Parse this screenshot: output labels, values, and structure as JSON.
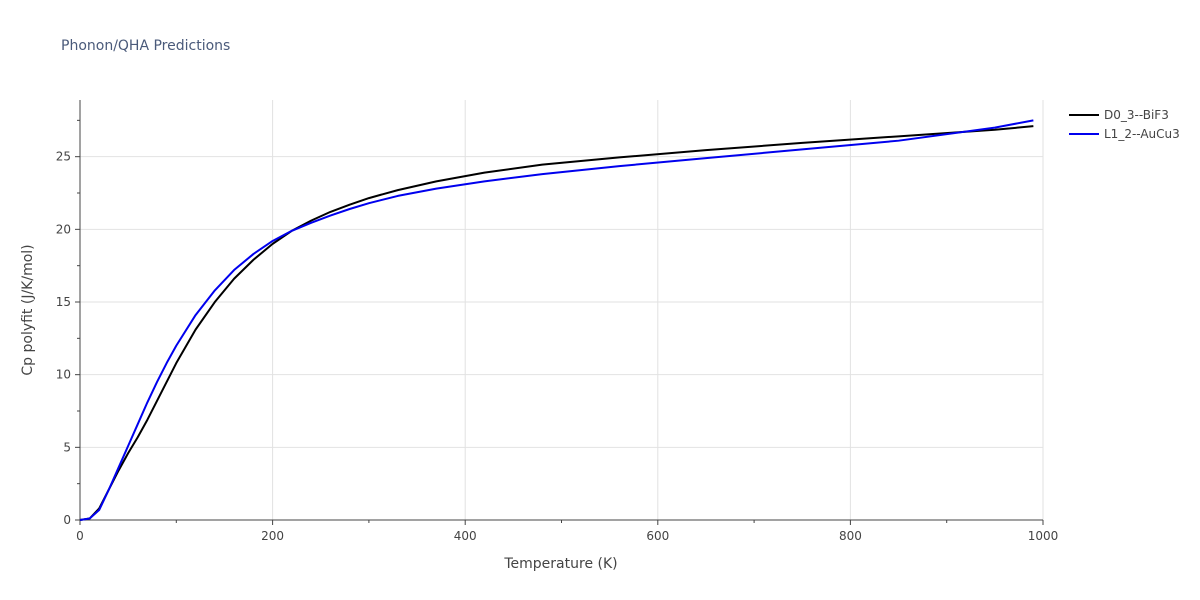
{
  "chart_data": {
    "type": "line",
    "title": "Phonon/QHA Predictions",
    "xlabel": "Temperature (K)",
    "ylabel": "Cp polyfit (J/K/mol)",
    "xlim": [
      0,
      1000
    ],
    "ylim": [
      0,
      28.9
    ],
    "xticks": [
      0,
      200,
      400,
      600,
      800,
      1000
    ],
    "yticks": [
      0,
      5,
      10,
      15,
      20,
      25
    ],
    "grid": true,
    "legend_position": "top-right",
    "series": [
      {
        "name": "D0_3--BiF3",
        "color": "#000000",
        "x": [
          0,
          10,
          20,
          30,
          40,
          50,
          60,
          70,
          80,
          90,
          100,
          120,
          140,
          160,
          180,
          200,
          220,
          240,
          260,
          280,
          300,
          330,
          370,
          420,
          480,
          560,
          650,
          750,
          850,
          950,
          990
        ],
        "y": [
          0,
          0.1,
          0.8,
          2.1,
          3.4,
          4.6,
          5.7,
          6.9,
          8.2,
          9.5,
          10.8,
          13.1,
          15.0,
          16.6,
          17.9,
          19.0,
          19.9,
          20.6,
          21.2,
          21.7,
          22.15,
          22.7,
          23.3,
          23.9,
          24.45,
          24.95,
          25.45,
          25.95,
          26.4,
          26.85,
          27.1
        ]
      },
      {
        "name": "L1_2--AuCu3",
        "color": "#0000ee",
        "x": [
          0,
          10,
          20,
          30,
          40,
          50,
          60,
          70,
          80,
          90,
          100,
          120,
          140,
          160,
          180,
          200,
          220,
          240,
          260,
          280,
          300,
          330,
          370,
          420,
          480,
          560,
          650,
          750,
          850,
          950,
          990
        ],
        "y": [
          0,
          0.1,
          0.7,
          2.1,
          3.6,
          5.1,
          6.6,
          8.1,
          9.5,
          10.8,
          12.0,
          14.1,
          15.8,
          17.2,
          18.3,
          19.2,
          19.9,
          20.45,
          20.95,
          21.4,
          21.8,
          22.3,
          22.8,
          23.3,
          23.8,
          24.35,
          24.9,
          25.5,
          26.1,
          27.0,
          27.5
        ]
      }
    ]
  }
}
